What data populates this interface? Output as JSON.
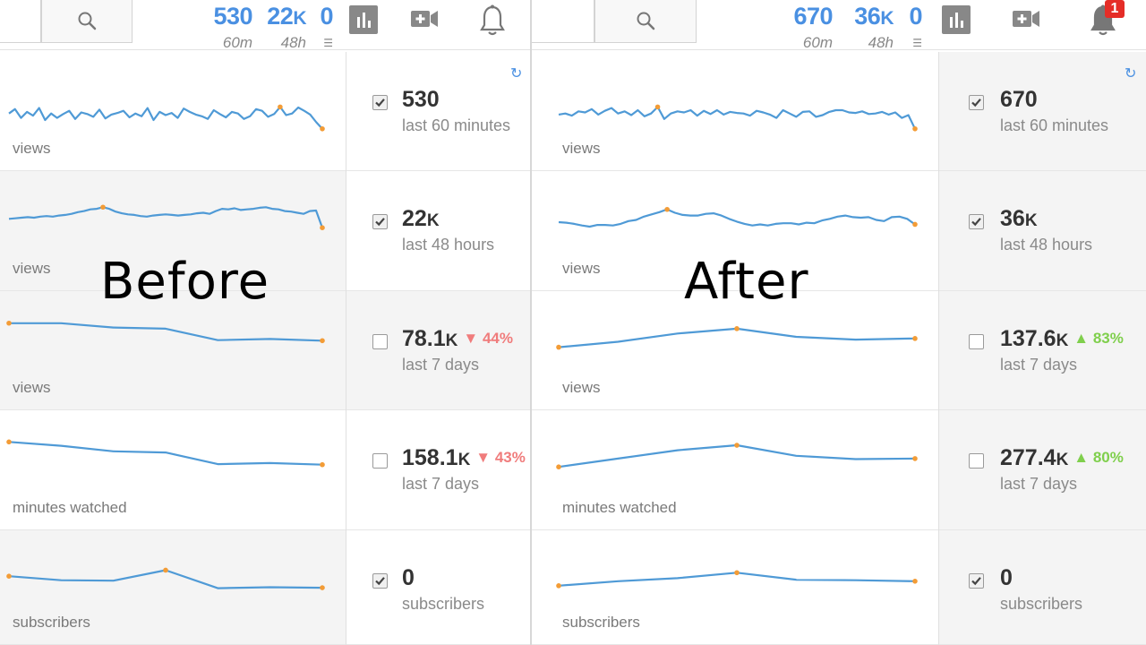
{
  "colors": {
    "accent": "#4a90e2",
    "sparkline": "#4f9ad6",
    "point": "#f39c36",
    "down": "#f07c7c",
    "up": "#7fcf4c",
    "badge": "#e52d27"
  },
  "icons": {
    "search": "search-icon",
    "analytics": "analytics-icon",
    "camera": "video-camera-plus-icon",
    "bell": "bell-icon",
    "refresh": "refresh-icon",
    "checkbox": "checkbox-icon"
  },
  "before": {
    "caption": "Before",
    "topbar": {
      "stats": [
        {
          "value": "530",
          "unit": "",
          "sub": "60m"
        },
        {
          "value": "22",
          "unit": "K",
          "sub": "48h"
        },
        {
          "value": "0",
          "unit": "",
          "sub": "☰"
        }
      ]
    },
    "rows": [
      {
        "label": "views",
        "value": "530",
        "unit": "",
        "period": "last 60 minutes",
        "checked": true,
        "delta": "",
        "direction": "",
        "series": [
          30,
          38,
          22,
          33,
          26,
          40,
          18,
          30,
          22,
          29,
          35,
          20,
          32,
          29,
          24,
          37,
          21,
          28,
          31,
          35,
          23,
          30,
          25,
          40,
          18,
          33,
          27,
          31,
          22,
          39,
          33,
          28,
          25,
          20,
          36,
          29,
          23,
          33,
          30,
          20,
          25,
          38,
          35,
          24,
          29,
          42,
          27,
          30,
          41,
          35,
          28,
          14,
          2
        ]
      },
      {
        "label": "views",
        "value": "22",
        "unit": "K",
        "period": "last 48 hours",
        "checked": true,
        "delta": "",
        "direction": "",
        "series": [
          56,
          57,
          58,
          59,
          58,
          60,
          61,
          60,
          62,
          63,
          65,
          68,
          70,
          73,
          74,
          77,
          74,
          69,
          66,
          64,
          63,
          61,
          60,
          62,
          63,
          64,
          63,
          62,
          63,
          64,
          66,
          67,
          65,
          70,
          74,
          73,
          75,
          72,
          73,
          74,
          76,
          77,
          74,
          73,
          70,
          69,
          67,
          65,
          70,
          71,
          40
        ]
      },
      {
        "label": "views",
        "value": "78.1",
        "unit": "K",
        "period": "last 7 days",
        "checked": false,
        "delta": "▼ 44%",
        "direction": "down",
        "series": [
          84,
          84,
          76,
          74,
          53,
          55,
          52
        ]
      },
      {
        "label": "minutes watched",
        "value": "158.1",
        "unit": "K",
        "period": "last 7 days",
        "checked": false,
        "delta": "▼ 43%",
        "direction": "down",
        "series": [
          85,
          78,
          68,
          66,
          45,
          47,
          44
        ]
      },
      {
        "label": "subscribers",
        "value": "0",
        "unit": "",
        "period": "subscribers",
        "checked": true,
        "delta": "",
        "direction": "",
        "series": [
          55,
          47,
          46,
          67,
          31,
          33,
          32
        ]
      }
    ]
  },
  "after": {
    "caption": "After",
    "topbar": {
      "badge": "1",
      "stats": [
        {
          "value": "670",
          "unit": "",
          "sub": "60m"
        },
        {
          "value": "36",
          "unit": "K",
          "sub": "48h"
        },
        {
          "value": "0",
          "unit": "",
          "sub": "☰"
        }
      ]
    },
    "rows": [
      {
        "label": "views",
        "value": "670",
        "unit": "",
        "period": "last 60 minutes",
        "checked": true,
        "delta": "",
        "direction": "",
        "series": [
          28,
          30,
          26,
          34,
          32,
          38,
          28,
          35,
          40,
          30,
          34,
          27,
          36,
          25,
          30,
          42,
          20,
          30,
          34,
          32,
          36,
          26,
          35,
          29,
          36,
          28,
          33,
          31,
          30,
          26,
          35,
          32,
          28,
          22,
          36,
          30,
          24,
          33,
          34,
          24,
          27,
          33,
          36,
          36,
          32,
          31,
          34,
          29,
          30,
          33,
          28,
          32,
          22,
          27,
          2
        ]
      },
      {
        "label": "views",
        "value": "36",
        "unit": "K",
        "period": "last 48 hours",
        "checked": true,
        "delta": "",
        "direction": "",
        "series": [
          50,
          49,
          47,
          44,
          42,
          45,
          45,
          44,
          47,
          52,
          54,
          60,
          64,
          68,
          73,
          67,
          63,
          62,
          62,
          65,
          66,
          62,
          56,
          51,
          47,
          44,
          46,
          44,
          47,
          48,
          48,
          46,
          49,
          48,
          53,
          56,
          60,
          62,
          59,
          58,
          59,
          54,
          52,
          59,
          60,
          56,
          46
        ]
      },
      {
        "label": "views",
        "value": "137.6",
        "unit": "K",
        "period": "last 7 days",
        "checked": false,
        "delta": "▲ 83%",
        "direction": "up",
        "series": [
          40,
          50,
          65,
          74,
          59,
          54,
          56
        ]
      },
      {
        "label": "minutes watched",
        "value": "277.4",
        "unit": "K",
        "period": "last 7 days",
        "checked": false,
        "delta": "▲ 80%",
        "direction": "up",
        "series": [
          40,
          55,
          70,
          79,
          60,
          54,
          55
        ]
      },
      {
        "label": "subscribers",
        "value": "0",
        "unit": "",
        "period": "subscribers",
        "checked": true,
        "delta": "",
        "direction": "",
        "series": [
          36,
          45,
          51,
          62,
          48,
          47,
          45
        ]
      }
    ]
  }
}
